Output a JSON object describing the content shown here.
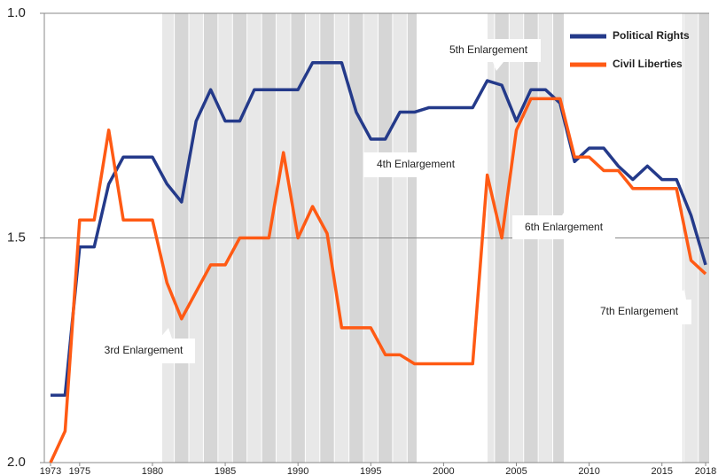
{
  "chart_data": {
    "type": "line",
    "x": [
      1973,
      1974,
      1975,
      1976,
      1977,
      1978,
      1979,
      1980,
      1981,
      1982,
      1983,
      1984,
      1985,
      1986,
      1987,
      1988,
      1989,
      1990,
      1991,
      1992,
      1993,
      1994,
      1995,
      1996,
      1997,
      1998,
      1999,
      2000,
      2001,
      2002,
      2003,
      2004,
      2005,
      2006,
      2007,
      2008,
      2009,
      2010,
      2011,
      2012,
      2013,
      2014,
      2015,
      2016,
      2017,
      2018
    ],
    "series": [
      {
        "name": "Political Rights",
        "color": "#243a8a",
        "values": [
          1.85,
          1.85,
          1.52,
          1.52,
          1.38,
          1.32,
          1.32,
          1.32,
          1.38,
          1.42,
          1.24,
          1.17,
          1.24,
          1.24,
          1.17,
          1.17,
          1.17,
          1.17,
          1.11,
          1.11,
          1.11,
          1.22,
          1.28,
          1.28,
          1.22,
          1.22,
          1.21,
          1.21,
          1.21,
          1.21,
          1.15,
          1.16,
          1.24,
          1.17,
          1.17,
          1.2,
          1.33,
          1.3,
          1.3,
          1.34,
          1.37,
          1.34,
          1.37,
          1.37,
          1.45,
          1.56
        ]
      },
      {
        "name": "Civil Liberties",
        "color": "#ff5a14",
        "values": [
          2.0,
          1.93,
          1.46,
          1.46,
          1.26,
          1.46,
          1.46,
          1.46,
          1.6,
          1.68,
          1.62,
          1.56,
          1.56,
          1.5,
          1.5,
          1.5,
          1.31,
          1.5,
          1.43,
          1.49,
          1.7,
          1.7,
          1.7,
          1.76,
          1.76,
          1.78,
          1.78,
          1.78,
          1.78,
          1.78,
          1.36,
          1.5,
          1.26,
          1.19,
          1.19,
          1.19,
          1.32,
          1.32,
          1.35,
          1.35,
          1.39,
          1.39,
          1.39,
          1.39,
          1.55,
          1.58
        ]
      }
    ],
    "xlim": [
      1973,
      2018
    ],
    "xticks": [
      1973,
      1975,
      1980,
      1985,
      1990,
      1995,
      2000,
      2005,
      2010,
      2015,
      2018
    ],
    "ylim": [
      1,
      2
    ],
    "yticks": [
      {
        "value": 1,
        "label": "1.0"
      },
      1.5,
      {
        "value": 2,
        "label": "2.0"
      }
    ],
    "inverted_y": true,
    "annotations": [
      "5th Enlargement",
      "4th Enlargement",
      "3rd Enlargement",
      "6th Enlargement",
      "7th Enlargement"
    ]
  }
}
